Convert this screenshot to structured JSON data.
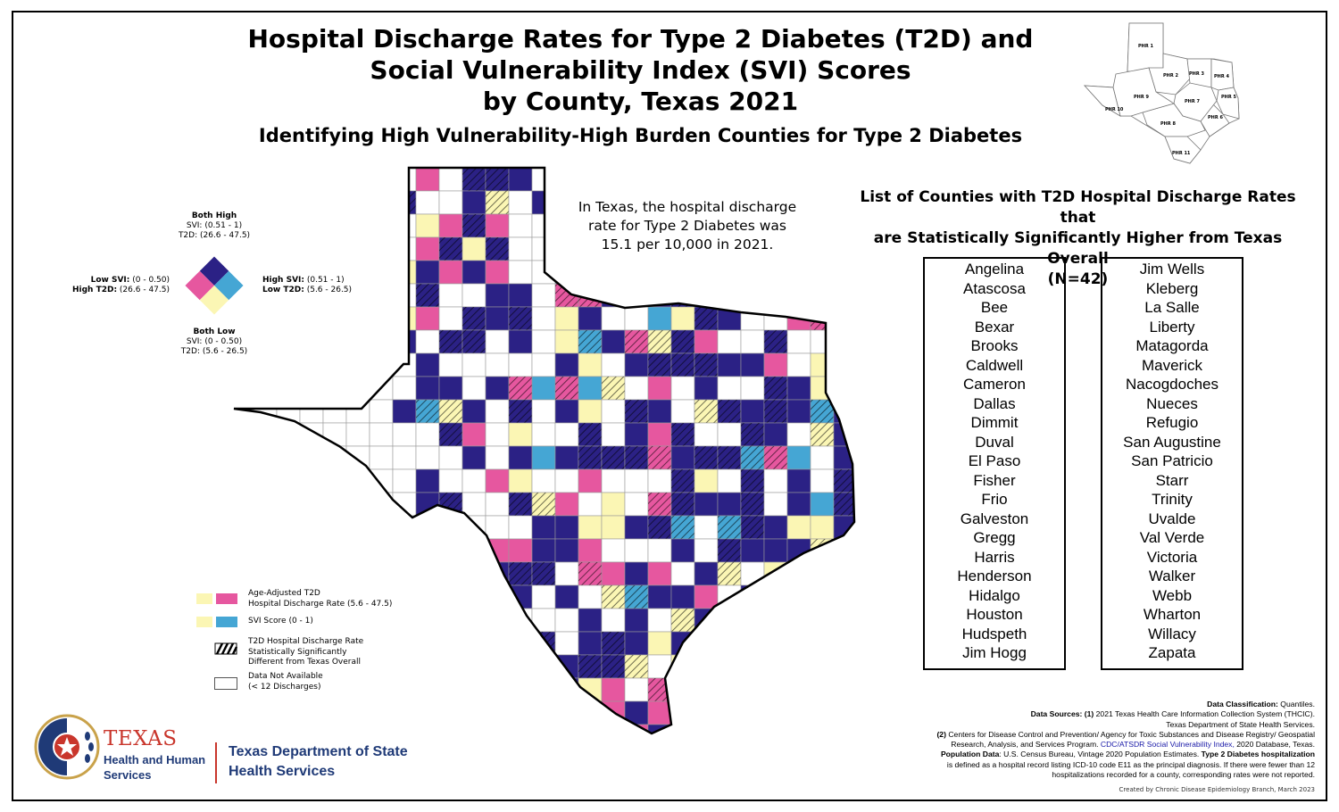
{
  "title": {
    "line1": "Hospital Discharge Rates for Type 2 Diabetes (T2D) and",
    "line2": "Social Vulnerability Index (SVI) Scores",
    "line3": "by County, Texas 2021",
    "subtitle": "Identifying High Vulnerability-High Burden Counties for Type 2 Diabetes"
  },
  "colors": {
    "both_high": "#2b2185",
    "high_t2d": "#e6579f",
    "high_svi": "#45a6d4",
    "both_low": "#fbf6b4",
    "not_available": "#ffffff"
  },
  "statement": {
    "line1": "In Texas, the hospital discharge",
    "line2": "rate for Type 2 Diabetes was",
    "line3": "15.1 per 10,000 in 2021."
  },
  "bivariate_legend": {
    "top": {
      "label": "Both High",
      "l1": "SVI: (0.51 - 1)",
      "l2": "T2D: (26.6 - 47.5)"
    },
    "left": {
      "k1": "Low SVI:",
      "v1": " (0 - 0.50)",
      "k2": "High T2D:",
      "v2": " (26.6 - 47.5)"
    },
    "right": {
      "k1": "High SVI:",
      "v1": " (0.51 - 1)",
      "k2": "Low T2D:",
      "v2": " (5.6 - 26.5)"
    },
    "bottom": {
      "label": "Both Low",
      "l1": "SVI: (0 - 0.50)",
      "l2": "T2D: (5.6 - 26.5)"
    }
  },
  "legend": {
    "t2d_l1": "Age-Adjusted T2D",
    "t2d_l2": "Hospital Discharge Rate (5.6 - 47.5)",
    "svi": "SVI Score (0 - 1)",
    "sig_l1": "T2D Hospital Discharge Rate",
    "sig_l2": "Statistically Significantly",
    "sig_l3": "Different from Texas Overall",
    "na_l1": "Data Not Available",
    "na_l2": "(< 12 Discharges)"
  },
  "phr_map": {
    "regions": [
      "PHR 1",
      "PHR 2",
      "PHR 3",
      "PHR 4",
      "PHR 5",
      "PHR 6",
      "PHR 7",
      "PHR 8",
      "PHR 9",
      "PHR 10",
      "PHR 11"
    ]
  },
  "county_list": {
    "heading_l1": "List of Counties with T2D Hospital Discharge Rates that",
    "heading_l2": "are Statistically Significantly Higher from Texas Overall",
    "heading_l3": "(N=42)",
    "column1": [
      "Angelina",
      "Atascosa",
      "Bee",
      "Bexar",
      "Brooks",
      "Caldwell",
      "Cameron",
      "Dallas",
      "Dimmit",
      "Duval",
      "El Paso",
      "Fisher",
      "Frio",
      "Galveston",
      "Gregg",
      "Harris",
      "Henderson",
      "Hidalgo",
      "Houston",
      "Hudspeth",
      "Jim Hogg"
    ],
    "column2": [
      "Jim Wells",
      "Kleberg",
      "La Salle",
      "Liberty",
      "Matagorda",
      "Maverick",
      "Nacogdoches",
      "Nueces",
      "Refugio",
      "San Augustine",
      "San Patricio",
      "Starr",
      "Trinity",
      "Uvalde",
      "Val Verde",
      "Victoria",
      "Walker",
      "Webb",
      "Wharton",
      "Willacy",
      "Zapata"
    ]
  },
  "sources": {
    "class_k": "Data Classification:",
    "class_v": " Quantiles.",
    "ds_k": "Data Sources: (1)",
    "ds_v": " 2021 Texas Health Care Information Collection System (THCIC).",
    "ds_v2": "Texas Department of State Health Services.",
    "ds2_k": "(2)",
    "ds2_v": " Centers for Disease Control and Prevention/ Agency for Toxic Substances and Disease Registry/ Geospatial",
    "ds2_v2a": "Research, Analysis, and Services Program. ",
    "ds2_link": "CDC/ATSDR Social Vulnerability Index,",
    "ds2_v2b": " 2020 Database, Texas.",
    "pop_k": "Population Data",
    "pop_v": ": U.S. Census Bureau, Vintage 2020 Population Estimates. ",
    "t2d_k": "Type 2 Diabetes hospitalization",
    "def1": "is defined as a hospital record listing ICD-10 code E11 as the principal diagnosis. If there were fewer than 12",
    "def2": "hospitalizations recorded for a county, corresponding rates were not reported.",
    "created": "Created by Chronic Disease Epidemiology Branch, March 2023"
  },
  "logos": {
    "hhs_texas": "TEXAS",
    "hhs_l1": "Health and Human",
    "hhs_l2": "Services",
    "dshs_l1": "Texas Department of State",
    "dshs_l2": "Health Services"
  }
}
